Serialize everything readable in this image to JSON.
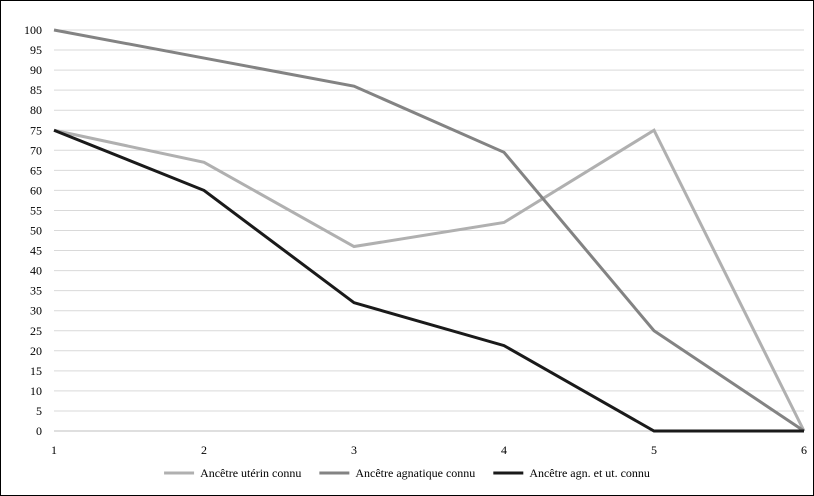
{
  "chart_data": {
    "type": "line",
    "x": [
      1,
      2,
      3,
      4,
      5,
      6
    ],
    "series": [
      {
        "name": "Ancêtre utérin connu",
        "color": "#b0b0b0",
        "values": [
          75,
          67,
          46,
          52,
          75,
          0
        ]
      },
      {
        "name": "Ancêtre agnatique connu",
        "color": "#838383",
        "values": [
          100,
          93,
          86,
          69.5,
          25,
          0
        ]
      },
      {
        "name": "Ancêtre agn. et ut. connu",
        "color": "#1a1a1a",
        "values": [
          75,
          60,
          32,
          21.3,
          0,
          0
        ]
      }
    ],
    "xlim": [
      1,
      6
    ],
    "ylim": [
      0,
      100
    ],
    "yticks": [
      0,
      5,
      10,
      15,
      20,
      25,
      30,
      35,
      40,
      45,
      50,
      55,
      60,
      65,
      70,
      75,
      80,
      85,
      90,
      95,
      100
    ],
    "xticks": [
      1,
      2,
      3,
      4,
      5,
      6
    ],
    "grid": "horizontal",
    "legend": "bottom",
    "gridColor": "#d9d9d9"
  }
}
